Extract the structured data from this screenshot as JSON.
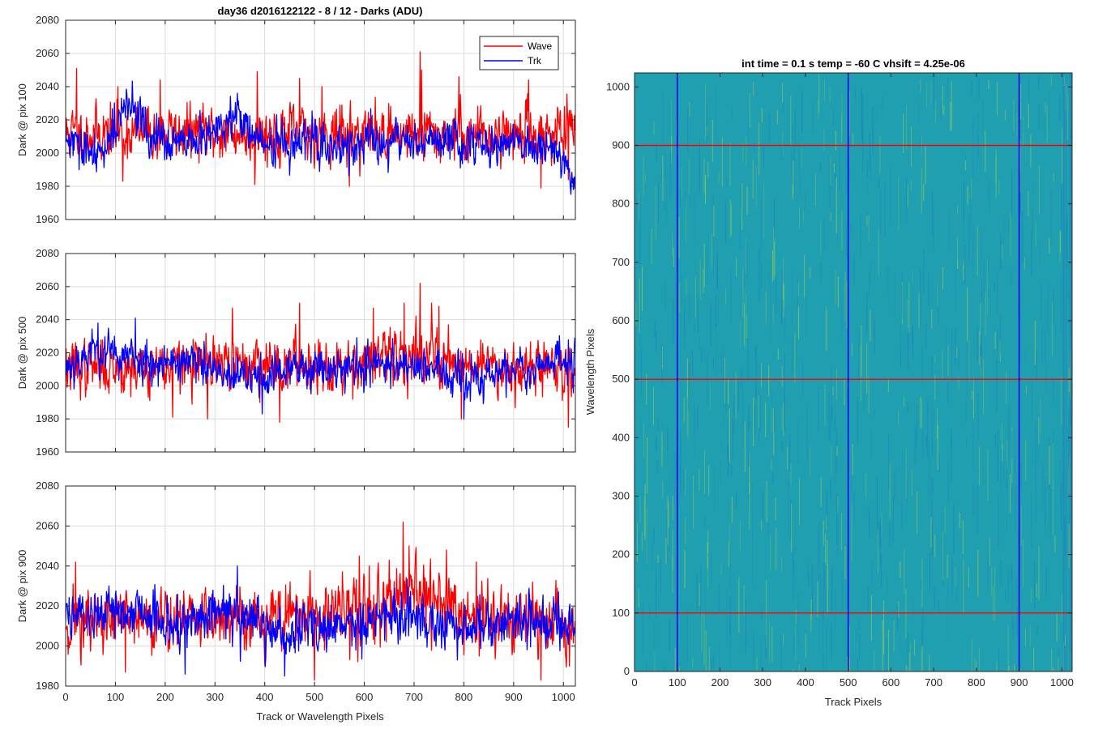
{
  "figure": {
    "left_title": "day36 d2016122122 - 8 / 12 - Darks (ADU)",
    "left_xlabel": "Track or Wavelength Pixels",
    "right_title": "int time = 0.1 s   temp = -60 C   vhsift = 4.25e-06",
    "right_xlabel": "Track Pixels",
    "right_ylabel": "Wavelength Pixels"
  },
  "colors": {
    "wave": "#ff0000",
    "trk": "#0000ff",
    "image_base": "#1f9fb0",
    "image_low": "#1a78c2",
    "image_high": "#9ccf55",
    "grid": "#dcdcdc"
  },
  "chart_data": [
    {
      "type": "line",
      "ylabel": "Dark @ pix 100",
      "xlim": [
        0,
        1024
      ],
      "ylim": [
        1960,
        2080
      ],
      "xticks": [
        0,
        100,
        200,
        300,
        400,
        500,
        600,
        700,
        800,
        900,
        1000
      ],
      "yticks": [
        1960,
        1980,
        2000,
        2020,
        2040,
        2060,
        2080
      ],
      "grid": true,
      "legend": {
        "position": "top-right",
        "entries": [
          "Wave",
          "Trk"
        ]
      },
      "series": [
        {
          "name": "Wave",
          "noise": {
            "n": 1024,
            "mean": 2012,
            "std": 9,
            "seed": 11
          },
          "spikes": [
            [
              22,
              2051
            ],
            [
              105,
              2040
            ],
            [
              190,
              2044
            ],
            [
              385,
              2049
            ],
            [
              470,
              2045
            ],
            [
              515,
              2040
            ],
            [
              712,
              2061
            ],
            [
              790,
              2046
            ],
            [
              930,
              2044
            ],
            [
              715,
              2050
            ]
          ],
          "dips": [
            [
              115,
              1983
            ],
            [
              380,
              1981
            ],
            [
              570,
              1980
            ],
            [
              955,
              1979
            ],
            [
              1010,
              1984
            ]
          ]
        },
        {
          "name": "Trk",
          "noise": {
            "n": 1024,
            "mean": 2006,
            "std": 7,
            "seed": 29
          },
          "trend": [
            [
              0,
              2008
            ],
            [
              60,
              1996
            ],
            [
              110,
              2022
            ],
            [
              140,
              2030
            ],
            [
              170,
              2008
            ],
            [
              250,
              2004
            ],
            [
              350,
              2022
            ],
            [
              400,
              2004
            ],
            [
              500,
              2006
            ],
            [
              600,
              2004
            ],
            [
              700,
              2008
            ],
            [
              800,
              2006
            ],
            [
              900,
              2006
            ],
            [
              980,
              2004
            ],
            [
              1024,
              1986
            ]
          ],
          "spikes": [
            [
              345,
              2036
            ],
            [
              150,
              2034
            ]
          ],
          "dips": [
            [
              1020,
              1978
            ]
          ]
        }
      ]
    },
    {
      "type": "line",
      "ylabel": "Dark @ pix 500",
      "xlim": [
        0,
        1024
      ],
      "ylim": [
        1960,
        2080
      ],
      "xticks": [
        0,
        100,
        200,
        300,
        400,
        500,
        600,
        700,
        800,
        900,
        1000
      ],
      "yticks": [
        1960,
        1980,
        2000,
        2020,
        2040,
        2060,
        2080
      ],
      "grid": true,
      "series": [
        {
          "name": "Wave",
          "noise": {
            "n": 1024,
            "mean": 2012,
            "std": 9,
            "seed": 37
          },
          "trend": [
            [
              0,
              2011
            ],
            [
              600,
              2014
            ],
            [
              720,
              2020
            ],
            [
              800,
              2014
            ],
            [
              1024,
              2010
            ]
          ],
          "spikes": [
            [
              335,
              2047
            ],
            [
              470,
              2050
            ],
            [
              618,
              2047
            ],
            [
              712,
              2062
            ],
            [
              735,
              2050
            ],
            [
              750,
              2048
            ],
            [
              680,
              2050
            ]
          ],
          "dips": [
            [
              215,
              1981
            ],
            [
              285,
              1980
            ],
            [
              430,
              1978
            ],
            [
              795,
              1980
            ],
            [
              1010,
              1975
            ]
          ]
        },
        {
          "name": "Trk",
          "noise": {
            "n": 1024,
            "mean": 2010,
            "std": 7,
            "seed": 53
          },
          "trend": [
            [
              0,
              2012
            ],
            [
              60,
              2022
            ],
            [
              140,
              2016
            ],
            [
              260,
              2014
            ],
            [
              330,
              2004
            ],
            [
              400,
              2006
            ],
            [
              500,
              2012
            ],
            [
              600,
              2012
            ],
            [
              700,
              2014
            ],
            [
              800,
              2002
            ],
            [
              900,
              2010
            ],
            [
              1024,
              2016
            ]
          ],
          "spikes": [
            [
              65,
              2038
            ],
            [
              140,
              2041
            ]
          ],
          "dips": [
            [
              800,
              1980
            ],
            [
              395,
              1983
            ]
          ]
        }
      ]
    },
    {
      "type": "line",
      "ylabel": "Dark @ pix 900",
      "xlim": [
        0,
        1024
      ],
      "ylim": [
        1980,
        2080
      ],
      "xticks": [
        0,
        100,
        200,
        300,
        400,
        500,
        600,
        700,
        800,
        900,
        1000
      ],
      "yticks": [
        1980,
        2000,
        2020,
        2040,
        2060,
        2080
      ],
      "grid": true,
      "series": [
        {
          "name": "Wave",
          "noise": {
            "n": 1024,
            "mean": 2012,
            "std": 9,
            "seed": 71
          },
          "trend": [
            [
              0,
              2012
            ],
            [
              580,
              2016
            ],
            [
              680,
              2024
            ],
            [
              750,
              2022
            ],
            [
              800,
              2014
            ],
            [
              1024,
              2010
            ]
          ],
          "spikes": [
            [
              20,
              2042
            ],
            [
              678,
              2062
            ],
            [
              590,
              2045
            ],
            [
              690,
              2050
            ],
            [
              765,
              2048
            ],
            [
              825,
              2042
            ],
            [
              610,
              2040
            ]
          ],
          "dips": [
            [
              120,
              1987
            ],
            [
              500,
              1983
            ],
            [
              955,
              1983
            ],
            [
              1012,
              1990
            ]
          ]
        },
        {
          "name": "Trk",
          "noise": {
            "n": 1024,
            "mean": 2012,
            "std": 7,
            "seed": 89
          },
          "trend": [
            [
              0,
              2018
            ],
            [
              60,
              2016
            ],
            [
              150,
              2020
            ],
            [
              200,
              2010
            ],
            [
              270,
              2012
            ],
            [
              300,
              2020
            ],
            [
              350,
              2016
            ],
            [
              440,
              2004
            ],
            [
              500,
              2010
            ],
            [
              640,
              2012
            ],
            [
              700,
              2016
            ],
            [
              780,
              2008
            ],
            [
              900,
              2012
            ],
            [
              1024,
              2012
            ]
          ],
          "spikes": [
            [
              345,
              2040
            ]
          ],
          "dips": [
            [
              240,
              1986
            ],
            [
              440,
              1985
            ]
          ]
        }
      ]
    },
    {
      "type": "heatmap",
      "xlim": [
        0,
        1024
      ],
      "ylim": [
        0,
        1024
      ],
      "xticks": [
        0,
        100,
        200,
        300,
        400,
        500,
        600,
        700,
        800,
        900,
        1000
      ],
      "yticks": [
        0,
        100,
        200,
        300,
        400,
        500,
        600,
        700,
        800,
        900,
        1000
      ],
      "colormap": "parula",
      "overlay_lines": {
        "vertical": {
          "color": "blue",
          "x": [
            100,
            500,
            900
          ]
        },
        "horizontal": {
          "color": "red",
          "y": [
            100,
            500,
            900
          ]
        }
      }
    }
  ]
}
